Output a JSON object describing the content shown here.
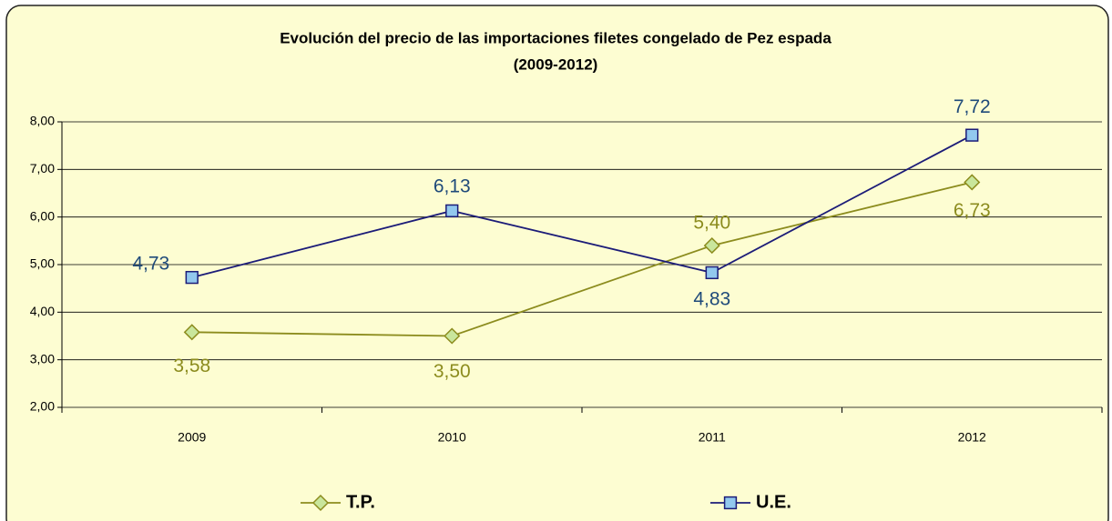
{
  "chart_data": {
    "type": "line",
    "title": "Evolución del precio de las importaciones filetes congelado de Pez espada",
    "subtitle": "(2009-2012)",
    "categories": [
      "2009",
      "2010",
      "2011",
      "2012"
    ],
    "series": [
      {
        "name": "T.P.",
        "color": "#8c8c1e",
        "marker": "diamond",
        "marker_color": "#c9e69c",
        "values": [
          3.58,
          3.5,
          5.4,
          6.73
        ],
        "value_labels": [
          "3,58",
          "3,50",
          "5,40",
          "6,73"
        ]
      },
      {
        "name": "U.E.",
        "color": "#1c1c78",
        "marker": "square",
        "marker_color": "#92c8ee",
        "values": [
          4.73,
          6.13,
          4.83,
          7.72
        ],
        "value_labels": [
          "4,73",
          "6,13",
          "4,83",
          "7,72"
        ]
      }
    ],
    "ylim": [
      2,
      8
    ],
    "yticks": [
      {
        "value": 2,
        "label": "2,00"
      },
      {
        "value": 3,
        "label": "3,00"
      },
      {
        "value": 4,
        "label": "4,00"
      },
      {
        "value": 5,
        "label": "5,00"
      },
      {
        "value": 6,
        "label": "6,00"
      },
      {
        "value": 7,
        "label": "7,00"
      },
      {
        "value": 8,
        "label": "8,00"
      }
    ],
    "grid": true,
    "legend": "bottom"
  }
}
